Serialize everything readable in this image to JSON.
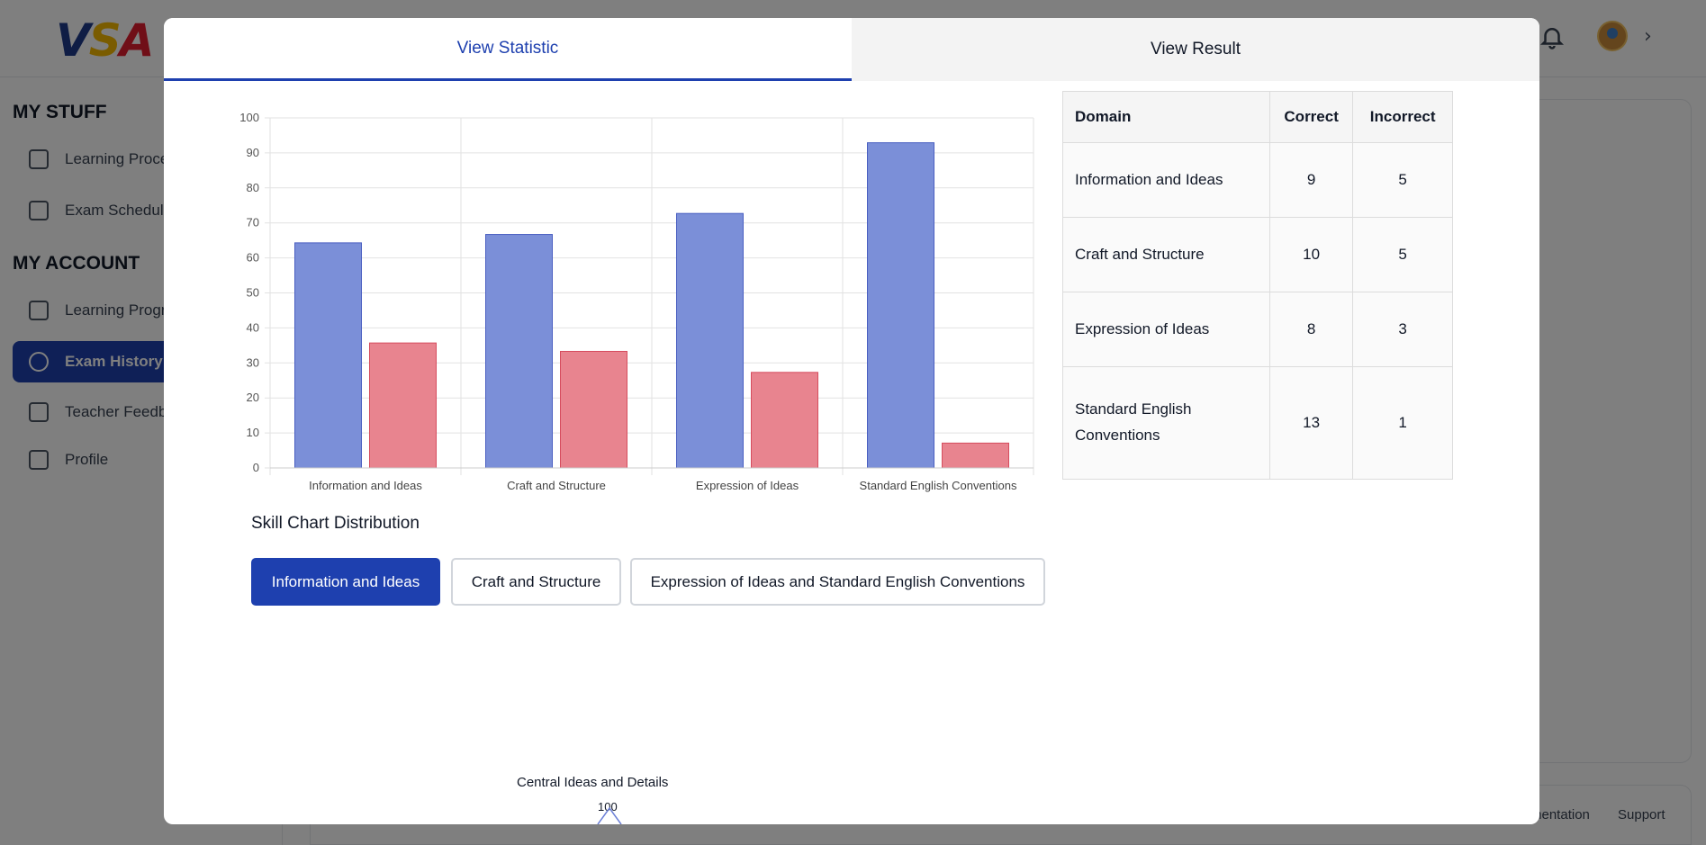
{
  "header": {
    "logo_parts": [
      "V",
      "S",
      "A"
    ],
    "icons": [
      "bell-icon",
      "avatar",
      "chevron-right-icon"
    ]
  },
  "sidebar": {
    "sections": [
      {
        "title": "MY STUFF",
        "items": [
          {
            "label": "Learning Proce",
            "icon": "book-open-icon"
          },
          {
            "label": "Exam Schedule",
            "icon": "calendar-icon"
          }
        ]
      },
      {
        "title": "MY ACCOUNT",
        "items": [
          {
            "label": "Learning Progr",
            "icon": "book-icon"
          },
          {
            "label": "Exam History",
            "icon": "history-icon",
            "active": true
          },
          {
            "label": "Teacher Feedb",
            "icon": "chat-icon"
          },
          {
            "label": "Profile",
            "icon": "user-settings-icon"
          }
        ]
      }
    ]
  },
  "footer": {
    "links": [
      "mentation",
      "Support"
    ]
  },
  "modal": {
    "tabs": [
      {
        "label": "View Statistic",
        "active": true
      },
      {
        "label": "View Result",
        "active": false
      }
    ],
    "table": {
      "headers": [
        "Domain",
        "Correct",
        "Incorrect"
      ],
      "rows": [
        {
          "domain": "Information and Ideas",
          "correct": "9",
          "incorrect": "5"
        },
        {
          "domain": "Craft and Structure",
          "correct": "10",
          "incorrect": "5"
        },
        {
          "domain": "Expression of Ideas",
          "correct": "8",
          "incorrect": "3"
        },
        {
          "domain": "Standard English Conventions",
          "correct": "13",
          "incorrect": "1"
        }
      ]
    },
    "skill_section": {
      "title": "Skill Chart Distribution",
      "buttons": [
        {
          "label": "Information and Ideas",
          "active": true
        },
        {
          "label": "Craft and Structure",
          "active": false
        },
        {
          "label": "Expression of Ideas and Standard English Conventions",
          "active": false
        }
      ]
    },
    "radar": {
      "axis_label": "Central Ideas and Details",
      "tick": "100"
    }
  },
  "chart_data": {
    "type": "bar",
    "categories": [
      "Information and Ideas",
      "Craft and Structure",
      "Expression of Ideas",
      "Standard English Conventions"
    ],
    "series": [
      {
        "values": [
          64.3,
          66.7,
          72.7,
          92.9
        ],
        "color": "#7b8fd8",
        "stroke": "#4a5fc1"
      },
      {
        "values": [
          35.7,
          33.3,
          27.3,
          7.1
        ],
        "color": "#e8848f",
        "stroke": "#d64d5e"
      }
    ],
    "ylim": [
      0,
      100
    ],
    "yticks": [
      "0",
      "10",
      "20",
      "30",
      "40",
      "50",
      "60",
      "70",
      "80",
      "90",
      "100"
    ],
    "grid": true
  }
}
